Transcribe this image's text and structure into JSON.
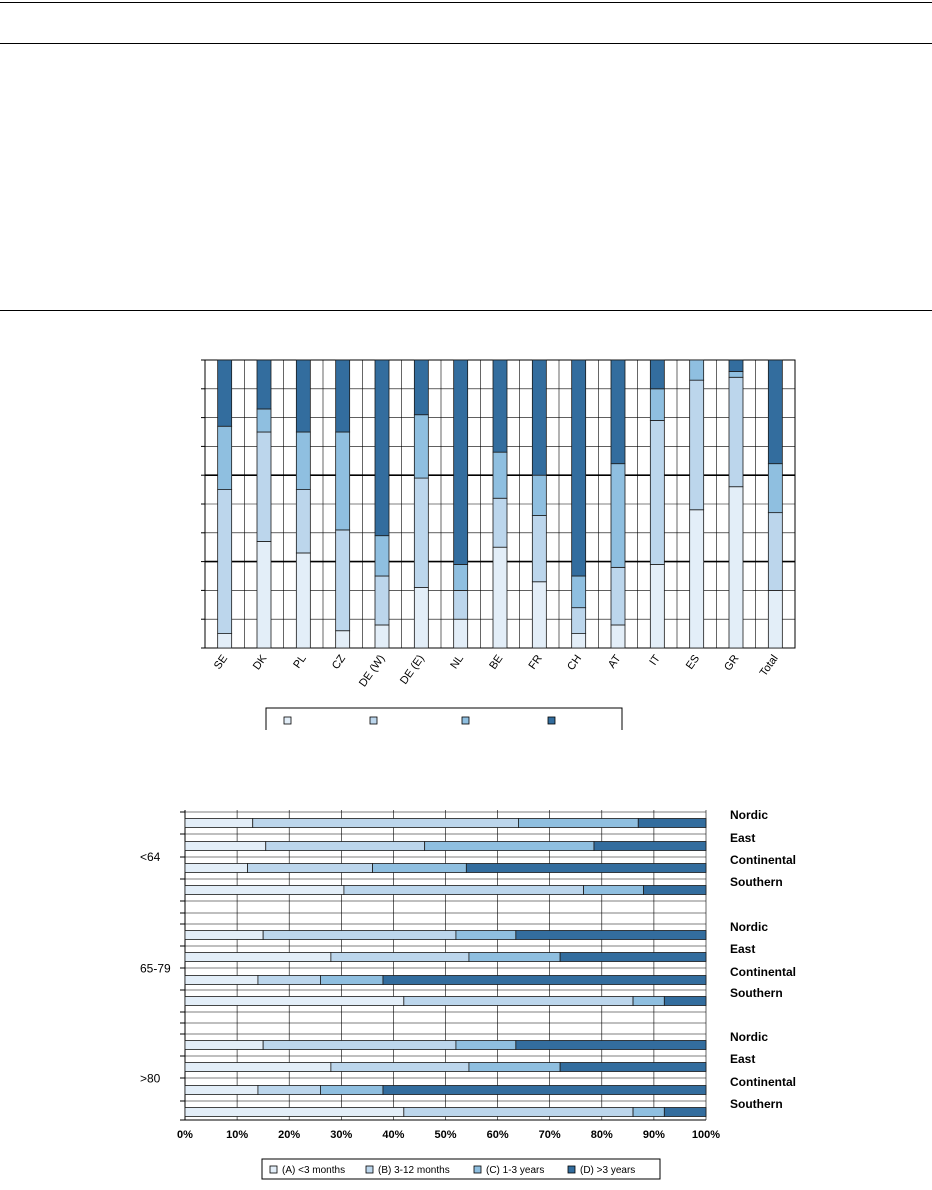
{
  "colors": {
    "A": "#e3eef8",
    "B": "#bcd6ec",
    "C": "#8fbfe0",
    "D": "#336d9e"
  },
  "chart_data": [
    {
      "type": "bar",
      "stacked": true,
      "orientation": "vertical",
      "ylim": [
        0,
        100
      ],
      "grid": true,
      "legend_position": "bottom",
      "categories": [
        "SE",
        "DK",
        "PL",
        "CZ",
        "DE (W)",
        "DE (E)",
        "NL",
        "BE",
        "FR",
        "CH",
        "AT",
        "IT",
        "ES",
        "GR",
        "Total"
      ],
      "series": [
        {
          "key": "A",
          "values": [
            5,
            37,
            33,
            6,
            8,
            21,
            10,
            35,
            23,
            5,
            8,
            29,
            48,
            56,
            20
          ]
        },
        {
          "key": "B",
          "values": [
            50,
            38,
            22,
            35,
            17,
            38,
            10,
            17,
            23,
            9,
            20,
            50,
            45,
            38,
            27
          ]
        },
        {
          "key": "C",
          "values": [
            22,
            8,
            20,
            34,
            14,
            22,
            9,
            16,
            14,
            11,
            36,
            11,
            7,
            2,
            17
          ]
        },
        {
          "key": "D",
          "values": [
            23,
            17,
            25,
            25,
            61,
            19,
            71,
            32,
            40,
            75,
            36,
            10,
            0,
            4,
            36
          ]
        }
      ]
    },
    {
      "type": "bar",
      "stacked": true,
      "orientation": "horizontal",
      "xlim": [
        0,
        100
      ],
      "grid": true,
      "legend_position": "bottom",
      "x_tick_labels": [
        "0%",
        "10%",
        "20%",
        "30%",
        "40%",
        "50%",
        "60%",
        "70%",
        "80%",
        "90%",
        "100%"
      ],
      "groups": [
        {
          "label": "<64",
          "rows": [
            {
              "region": "Nordic",
              "values": [
                13,
                51,
                23,
                13
              ]
            },
            {
              "region": "East",
              "values": [
                15.5,
                30.5,
                32.5,
                21.5
              ]
            },
            {
              "region": "Continental",
              "values": [
                12,
                24,
                18,
                46
              ]
            },
            {
              "region": "Southern",
              "values": [
                30.5,
                46,
                11.5,
                12
              ]
            }
          ]
        },
        {
          "label": "65-79",
          "rows": [
            {
              "region": "Nordic",
              "values": [
                15,
                37,
                11.5,
                36.5
              ]
            },
            {
              "region": "East",
              "values": [
                28,
                26.5,
                17.5,
                28
              ]
            },
            {
              "region": "Continental",
              "values": [
                14,
                12,
                12,
                62
              ]
            },
            {
              "region": "Southern",
              "values": [
                42,
                44,
                6,
                8
              ]
            }
          ]
        },
        {
          "label": ">80",
          "rows": [
            {
              "region": "Nordic",
              "values": [
                15,
                37,
                11.5,
                36.5
              ]
            },
            {
              "region": "East",
              "values": [
                28,
                26.5,
                17.5,
                28
              ]
            },
            {
              "region": "Continental",
              "values": [
                14,
                12,
                12,
                62
              ]
            },
            {
              "region": "Southern",
              "values": [
                42,
                44,
                6,
                8
              ]
            }
          ]
        }
      ],
      "legend": [
        "(A) <3 months",
        "(B) 3-12 months",
        "(C) 1-3 years",
        "(D) >3 years"
      ]
    }
  ]
}
